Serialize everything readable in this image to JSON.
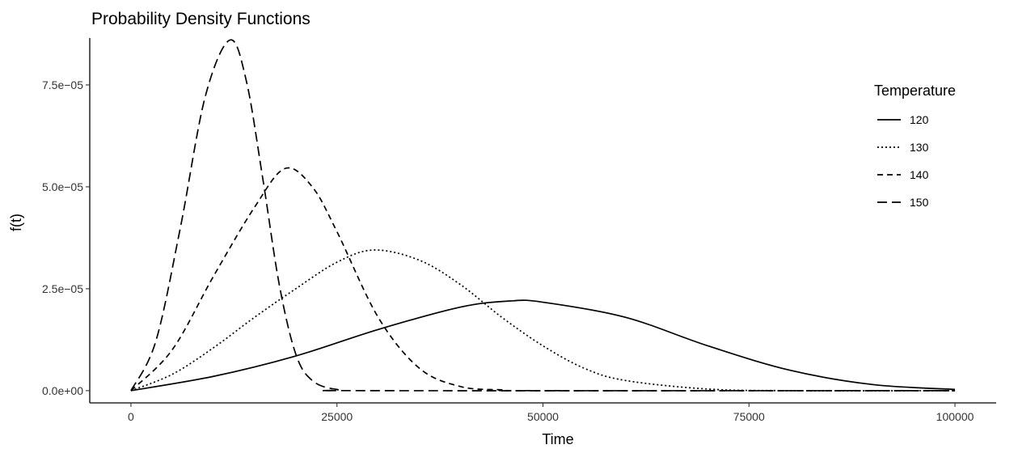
{
  "chart_data": {
    "type": "line",
    "title": "Probability Density Functions",
    "xlabel": "Time",
    "ylabel": "f(t)",
    "xlim": [
      -5000,
      105000
    ],
    "ylim": [
      -3e-06,
      8.65e-05
    ],
    "x_ticks": [
      0,
      25000,
      50000,
      75000,
      100000
    ],
    "x_tick_labels": [
      "0",
      "25000",
      "50000",
      "75000",
      "100000"
    ],
    "y_ticks": [
      0,
      2.5e-05,
      5e-05,
      7.5e-05
    ],
    "y_tick_labels": [
      "0.0e+00",
      "2.5e−05",
      "5.0e−05",
      "7.5e−05"
    ],
    "legend": {
      "title": "Temperature",
      "position": "right",
      "entries": [
        "120",
        "130",
        "140",
        "150"
      ]
    },
    "grid": false,
    "series": [
      {
        "name": "120",
        "line_style": "solid",
        "x": [
          0,
          10000,
          20000,
          30000,
          40000,
          46000,
          50000,
          60000,
          70000,
          80000,
          90000,
          100000
        ],
        "y": [
          0,
          3.5e-06,
          8.5e-06,
          1.5e-05,
          2.05e-05,
          2.2e-05,
          2.17e-05,
          1.8e-05,
          1.1e-05,
          5e-06,
          1.5e-06,
          3e-07
        ]
      },
      {
        "name": "130",
        "line_style": "dotted",
        "x": [
          0,
          5000,
          10000,
          15000,
          20000,
          25000,
          29500,
          35000,
          40000,
          45000,
          50000,
          55000,
          60000,
          70000,
          80000,
          100000
        ],
        "y": [
          0,
          4e-06,
          1.05e-05,
          1.8e-05,
          2.5e-05,
          3.15e-05,
          3.45e-05,
          3.2e-05,
          2.6e-05,
          1.8e-05,
          1.1e-05,
          5.5e-06,
          2.5e-06,
          4e-07,
          0,
          0
        ]
      },
      {
        "name": "140",
        "line_style": "dashed",
        "x": [
          0,
          5000,
          10000,
          15000,
          18700,
          22000,
          25000,
          30000,
          35000,
          40000,
          45000,
          50000,
          100000
        ],
        "y": [
          0,
          1e-05,
          2.8e-05,
          4.5e-05,
          5.45e-05,
          5e-05,
          3.9e-05,
          1.8e-05,
          5.5e-06,
          1e-06,
          2e-07,
          0,
          0
        ]
      },
      {
        "name": "150",
        "line_style": "longdash",
        "x": [
          0,
          3000,
          6000,
          9000,
          12000,
          14000,
          16000,
          18000,
          20000,
          22000,
          25000,
          30000,
          100000
        ],
        "y": [
          0,
          1.2e-05,
          4e-05,
          7.2e-05,
          8.6e-05,
          7.6e-05,
          5.2e-05,
          2.6e-05,
          9e-06,
          2.5e-06,
          3e-07,
          0,
          0
        ]
      }
    ]
  }
}
